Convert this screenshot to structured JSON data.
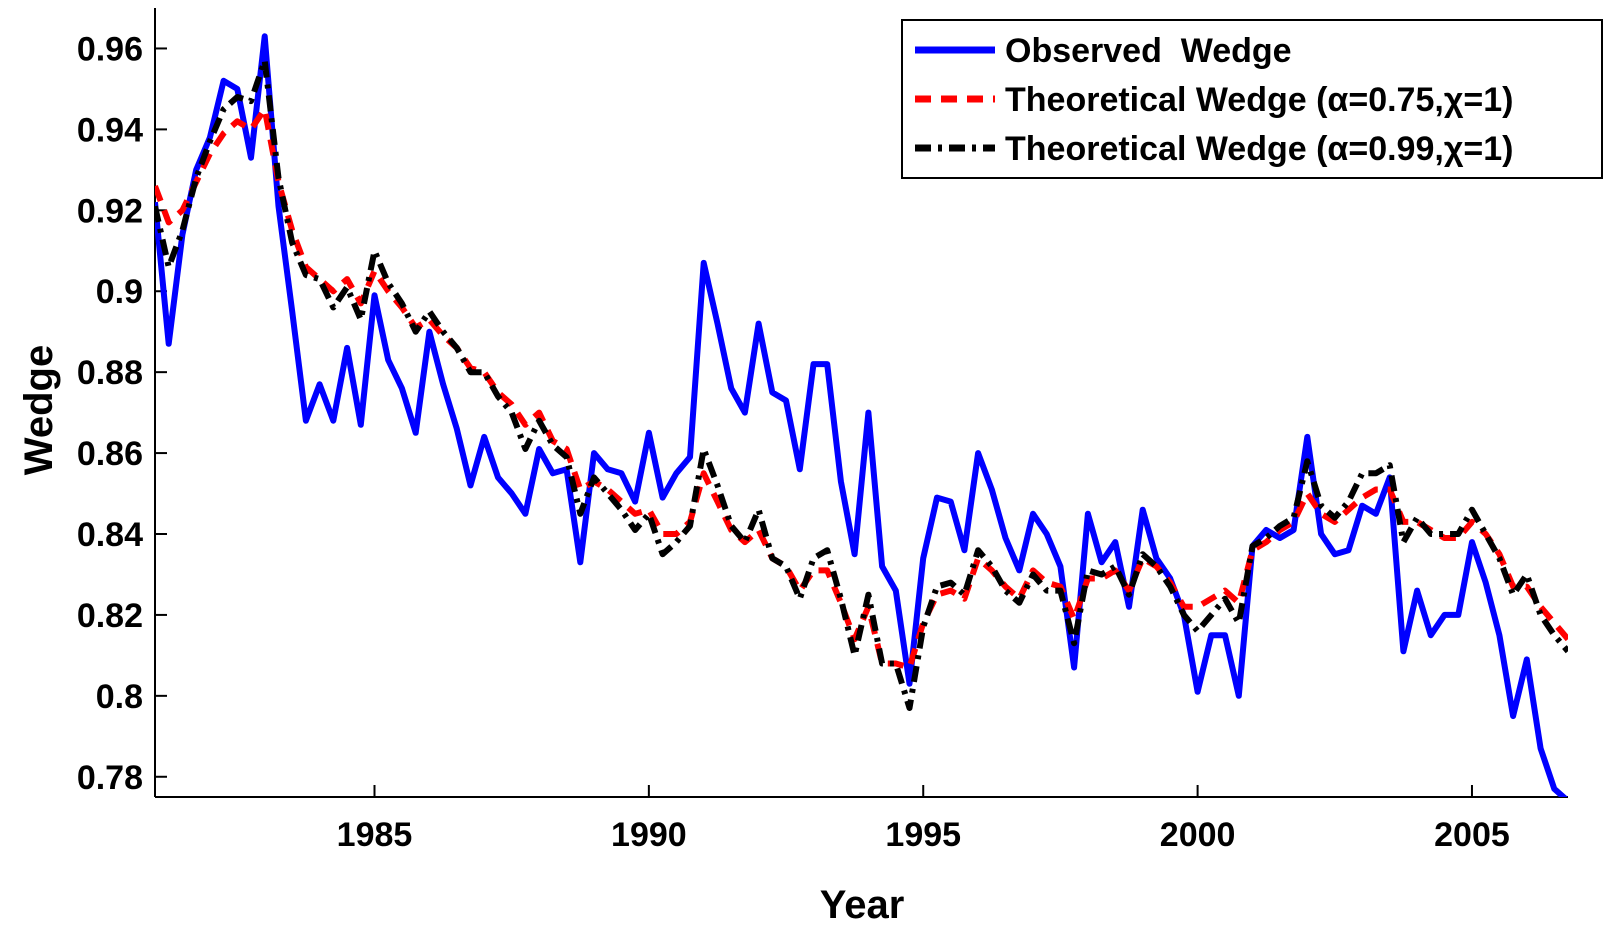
{
  "chart_data": {
    "type": "line",
    "title": "",
    "xlabel": "Year",
    "ylabel": "Wedge",
    "xlim": [
      1981.0,
      2006.75
    ],
    "ylim": [
      0.775,
      0.97
    ],
    "x_ticks": [
      1985,
      1990,
      1995,
      2000,
      2005
    ],
    "x_tick_labels": [
      "1985",
      "1990",
      "1995",
      "2000",
      "2005"
    ],
    "y_ticks": [
      0.78,
      0.8,
      0.82,
      0.84,
      0.86,
      0.88,
      0.9,
      0.92,
      0.94,
      0.96
    ],
    "y_tick_labels": [
      "0.78",
      "0.8",
      "0.82",
      "0.84",
      "0.86",
      "0.88",
      "0.9",
      "0.92",
      "0.94",
      "0.96"
    ],
    "grid": false,
    "legend_position": "top-right",
    "x": [
      1981.0,
      1981.25,
      1981.5,
      1981.75,
      1982.0,
      1982.25,
      1982.5,
      1982.75,
      1983.0,
      1983.25,
      1983.5,
      1983.75,
      1984.0,
      1984.25,
      1984.5,
      1984.75,
      1985.0,
      1985.25,
      1985.5,
      1985.75,
      1986.0,
      1986.25,
      1986.5,
      1986.75,
      1987.0,
      1987.25,
      1987.5,
      1987.75,
      1988.0,
      1988.25,
      1988.5,
      1988.75,
      1989.0,
      1989.25,
      1989.5,
      1989.75,
      1990.0,
      1990.25,
      1990.5,
      1990.75,
      1991.0,
      1991.25,
      1991.5,
      1991.75,
      1992.0,
      1992.25,
      1992.5,
      1992.75,
      1993.0,
      1993.25,
      1993.5,
      1993.75,
      1994.0,
      1994.25,
      1994.5,
      1994.75,
      1995.0,
      1995.25,
      1995.5,
      1995.75,
      1996.0,
      1996.25,
      1996.5,
      1996.75,
      1997.0,
      1997.25,
      1997.5,
      1997.75,
      1998.0,
      1998.25,
      1998.5,
      1998.75,
      1999.0,
      1999.25,
      1999.5,
      1999.75,
      2000.0,
      2000.25,
      2000.5,
      2000.75,
      2001.0,
      2001.25,
      2001.5,
      2001.75,
      2002.0,
      2002.25,
      2002.5,
      2002.75,
      2003.0,
      2003.25,
      2003.5,
      2003.75,
      2004.0,
      2004.25,
      2004.5,
      2004.75,
      2005.0,
      2005.25,
      2005.5,
      2005.75,
      2006.0,
      2006.25,
      2006.5,
      2006.75
    ],
    "series": [
      {
        "name": "Observed  Wedge",
        "color": "#0000ff",
        "style": "solid",
        "values": [
          0.922,
          0.887,
          0.914,
          0.93,
          0.938,
          0.952,
          0.95,
          0.933,
          0.963,
          0.921,
          0.895,
          0.868,
          0.877,
          0.868,
          0.886,
          0.867,
          0.899,
          0.883,
          0.876,
          0.865,
          0.89,
          0.877,
          0.866,
          0.852,
          0.864,
          0.854,
          0.85,
          0.845,
          0.861,
          0.855,
          0.856,
          0.833,
          0.86,
          0.856,
          0.855,
          0.848,
          0.865,
          0.849,
          0.855,
          0.859,
          0.907,
          0.892,
          0.876,
          0.87,
          0.892,
          0.875,
          0.873,
          0.856,
          0.882,
          0.882,
          0.853,
          0.835,
          0.87,
          0.832,
          0.826,
          0.803,
          0.834,
          0.849,
          0.848,
          0.836,
          0.86,
          0.851,
          0.839,
          0.831,
          0.845,
          0.84,
          0.832,
          0.807,
          0.845,
          0.833,
          0.838,
          0.822,
          0.846,
          0.834,
          0.829,
          0.82,
          0.801,
          0.815,
          0.815,
          0.8,
          0.837,
          0.841,
          0.839,
          0.841,
          0.864,
          0.84,
          0.835,
          0.836,
          0.847,
          0.845,
          0.854,
          0.811,
          0.826,
          0.815,
          0.82,
          0.82,
          0.838,
          0.828,
          0.815,
          0.795,
          0.809,
          0.787,
          0.777,
          0.774
        ]
      },
      {
        "name": "Theoretical Wedge (α=0.75,χ=1)",
        "color": "#ff0000",
        "style": "dashed",
        "values": [
          0.926,
          0.917,
          0.92,
          0.927,
          0.934,
          0.939,
          0.942,
          0.94,
          0.945,
          0.927,
          0.915,
          0.906,
          0.903,
          0.9,
          0.903,
          0.897,
          0.905,
          0.9,
          0.896,
          0.891,
          0.893,
          0.889,
          0.886,
          0.881,
          0.88,
          0.875,
          0.872,
          0.867,
          0.87,
          0.863,
          0.861,
          0.851,
          0.853,
          0.851,
          0.848,
          0.845,
          0.846,
          0.84,
          0.84,
          0.843,
          0.855,
          0.848,
          0.841,
          0.838,
          0.841,
          0.834,
          0.832,
          0.826,
          0.831,
          0.831,
          0.823,
          0.814,
          0.822,
          0.808,
          0.808,
          0.807,
          0.818,
          0.825,
          0.826,
          0.824,
          0.834,
          0.831,
          0.827,
          0.824,
          0.831,
          0.828,
          0.827,
          0.819,
          0.829,
          0.829,
          0.831,
          0.826,
          0.834,
          0.832,
          0.828,
          0.822,
          0.822,
          0.824,
          0.826,
          0.823,
          0.836,
          0.838,
          0.841,
          0.843,
          0.85,
          0.845,
          0.843,
          0.846,
          0.849,
          0.851,
          0.851,
          0.843,
          0.843,
          0.841,
          0.839,
          0.839,
          0.843,
          0.84,
          0.835,
          0.827,
          0.827,
          0.822,
          0.818,
          0.814
        ]
      },
      {
        "name": "Theoretical Wedge (α=0.99,χ=1)",
        "color": "#000000",
        "style": "dashdot",
        "values": [
          0.921,
          0.906,
          0.915,
          0.928,
          0.937,
          0.945,
          0.948,
          0.947,
          0.957,
          0.928,
          0.912,
          0.904,
          0.903,
          0.896,
          0.901,
          0.893,
          0.91,
          0.902,
          0.897,
          0.89,
          0.895,
          0.89,
          0.886,
          0.88,
          0.88,
          0.874,
          0.87,
          0.861,
          0.868,
          0.862,
          0.859,
          0.845,
          0.854,
          0.85,
          0.846,
          0.841,
          0.845,
          0.835,
          0.838,
          0.842,
          0.861,
          0.852,
          0.842,
          0.838,
          0.846,
          0.834,
          0.832,
          0.824,
          0.834,
          0.836,
          0.824,
          0.81,
          0.825,
          0.808,
          0.808,
          0.797,
          0.817,
          0.827,
          0.828,
          0.825,
          0.836,
          0.832,
          0.826,
          0.823,
          0.83,
          0.826,
          0.826,
          0.813,
          0.831,
          0.83,
          0.832,
          0.825,
          0.835,
          0.832,
          0.827,
          0.82,
          0.816,
          0.82,
          0.824,
          0.818,
          0.837,
          0.839,
          0.842,
          0.844,
          0.858,
          0.847,
          0.844,
          0.848,
          0.855,
          0.855,
          0.857,
          0.838,
          0.844,
          0.84,
          0.84,
          0.84,
          0.846,
          0.84,
          0.834,
          0.825,
          0.83,
          0.82,
          0.815,
          0.811
        ]
      }
    ]
  }
}
